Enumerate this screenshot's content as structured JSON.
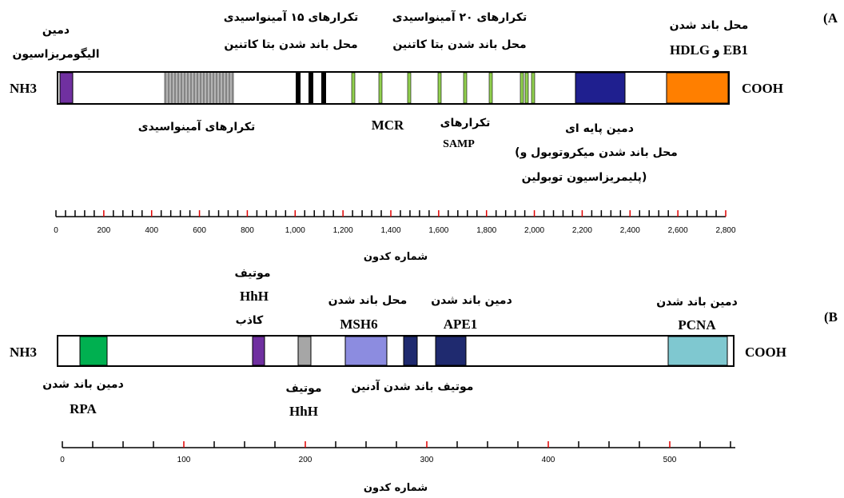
{
  "panel_a": {
    "panel_label": "(A",
    "n_terminus": "NH3",
    "c_terminus": "COOH",
    "labels_top": {
      "oligo_line1": "دمین",
      "oligo_line2": "الیگومریزاسیون",
      "rep15_line1": "تکرارهای ۱۵ آمینواسیدی",
      "rep15_line2": "محل باند شدن بتا کاتنین",
      "rep20_line1": "تکرارهای ۲۰ آمینواسیدی",
      "rep20_line2": "محل باند شدن بتا کاتنین",
      "eb1_line1": "محل باند شدن",
      "eb1_line2": "HDLG و EB1"
    },
    "labels_bottom": {
      "aa_repeats": "تکرارهای آمینواسیدی",
      "mcr": "MCR",
      "samp_line1": "تکرارهای",
      "samp_line2": "SAMP",
      "basic_line1": "دمین پایه ای",
      "basic_line2": "(محل باند شدن میکروتوبول و",
      "basic_line3": "پلیمریزاسیون توبولین)"
    },
    "axis_ticks": [
      "0",
      "200",
      "400",
      "600",
      "800",
      "1,000",
      "1,200",
      "1,400",
      "1,600",
      "1,800",
      "2,000",
      "2,200",
      "2,400",
      "2,600",
      "2,800"
    ],
    "axis_title": "شماره کدون",
    "colors": {
      "oligo": "#7030a0",
      "basic": "#1f1f8f",
      "eb1": "#ff7f00",
      "samp": "#92d050",
      "repeat": "#a6a6a6"
    }
  },
  "panel_b": {
    "panel_label": "(B",
    "n_terminus": "NH3",
    "c_terminus": "COOH",
    "labels_top": {
      "pseudo_line1": "موتیف",
      "pseudo_line2": "HhH",
      "pseudo_line3": "کاذب",
      "msh6_line1": "محل باند شدن",
      "msh6_line2": "MSH6",
      "ape1_line1": "دمین باند شدن",
      "ape1_line2": "APE1",
      "pcna_line1": "دمین باند شدن",
      "pcna_line2": "PCNA"
    },
    "labels_bottom": {
      "rpa_line1": "دمین باند شدن",
      "rpa_line2": "RPA",
      "hhh_line1": "موتیف",
      "hhh_line2": "HhH",
      "adenine": "موتیف باند شدن آدنین"
    },
    "axis_ticks": [
      "0",
      "100",
      "200",
      "300",
      "400",
      "500"
    ],
    "axis_title": "شماره کدون",
    "colors": {
      "rpa": "#00b050",
      "pseudo": "#7030a0",
      "hhh": "#a6a6a6",
      "msh6": "#8c8ce0",
      "adenine": "#1f2a6f",
      "ape1": "#1f2a6f",
      "pcna": "#7fc8d0"
    }
  }
}
